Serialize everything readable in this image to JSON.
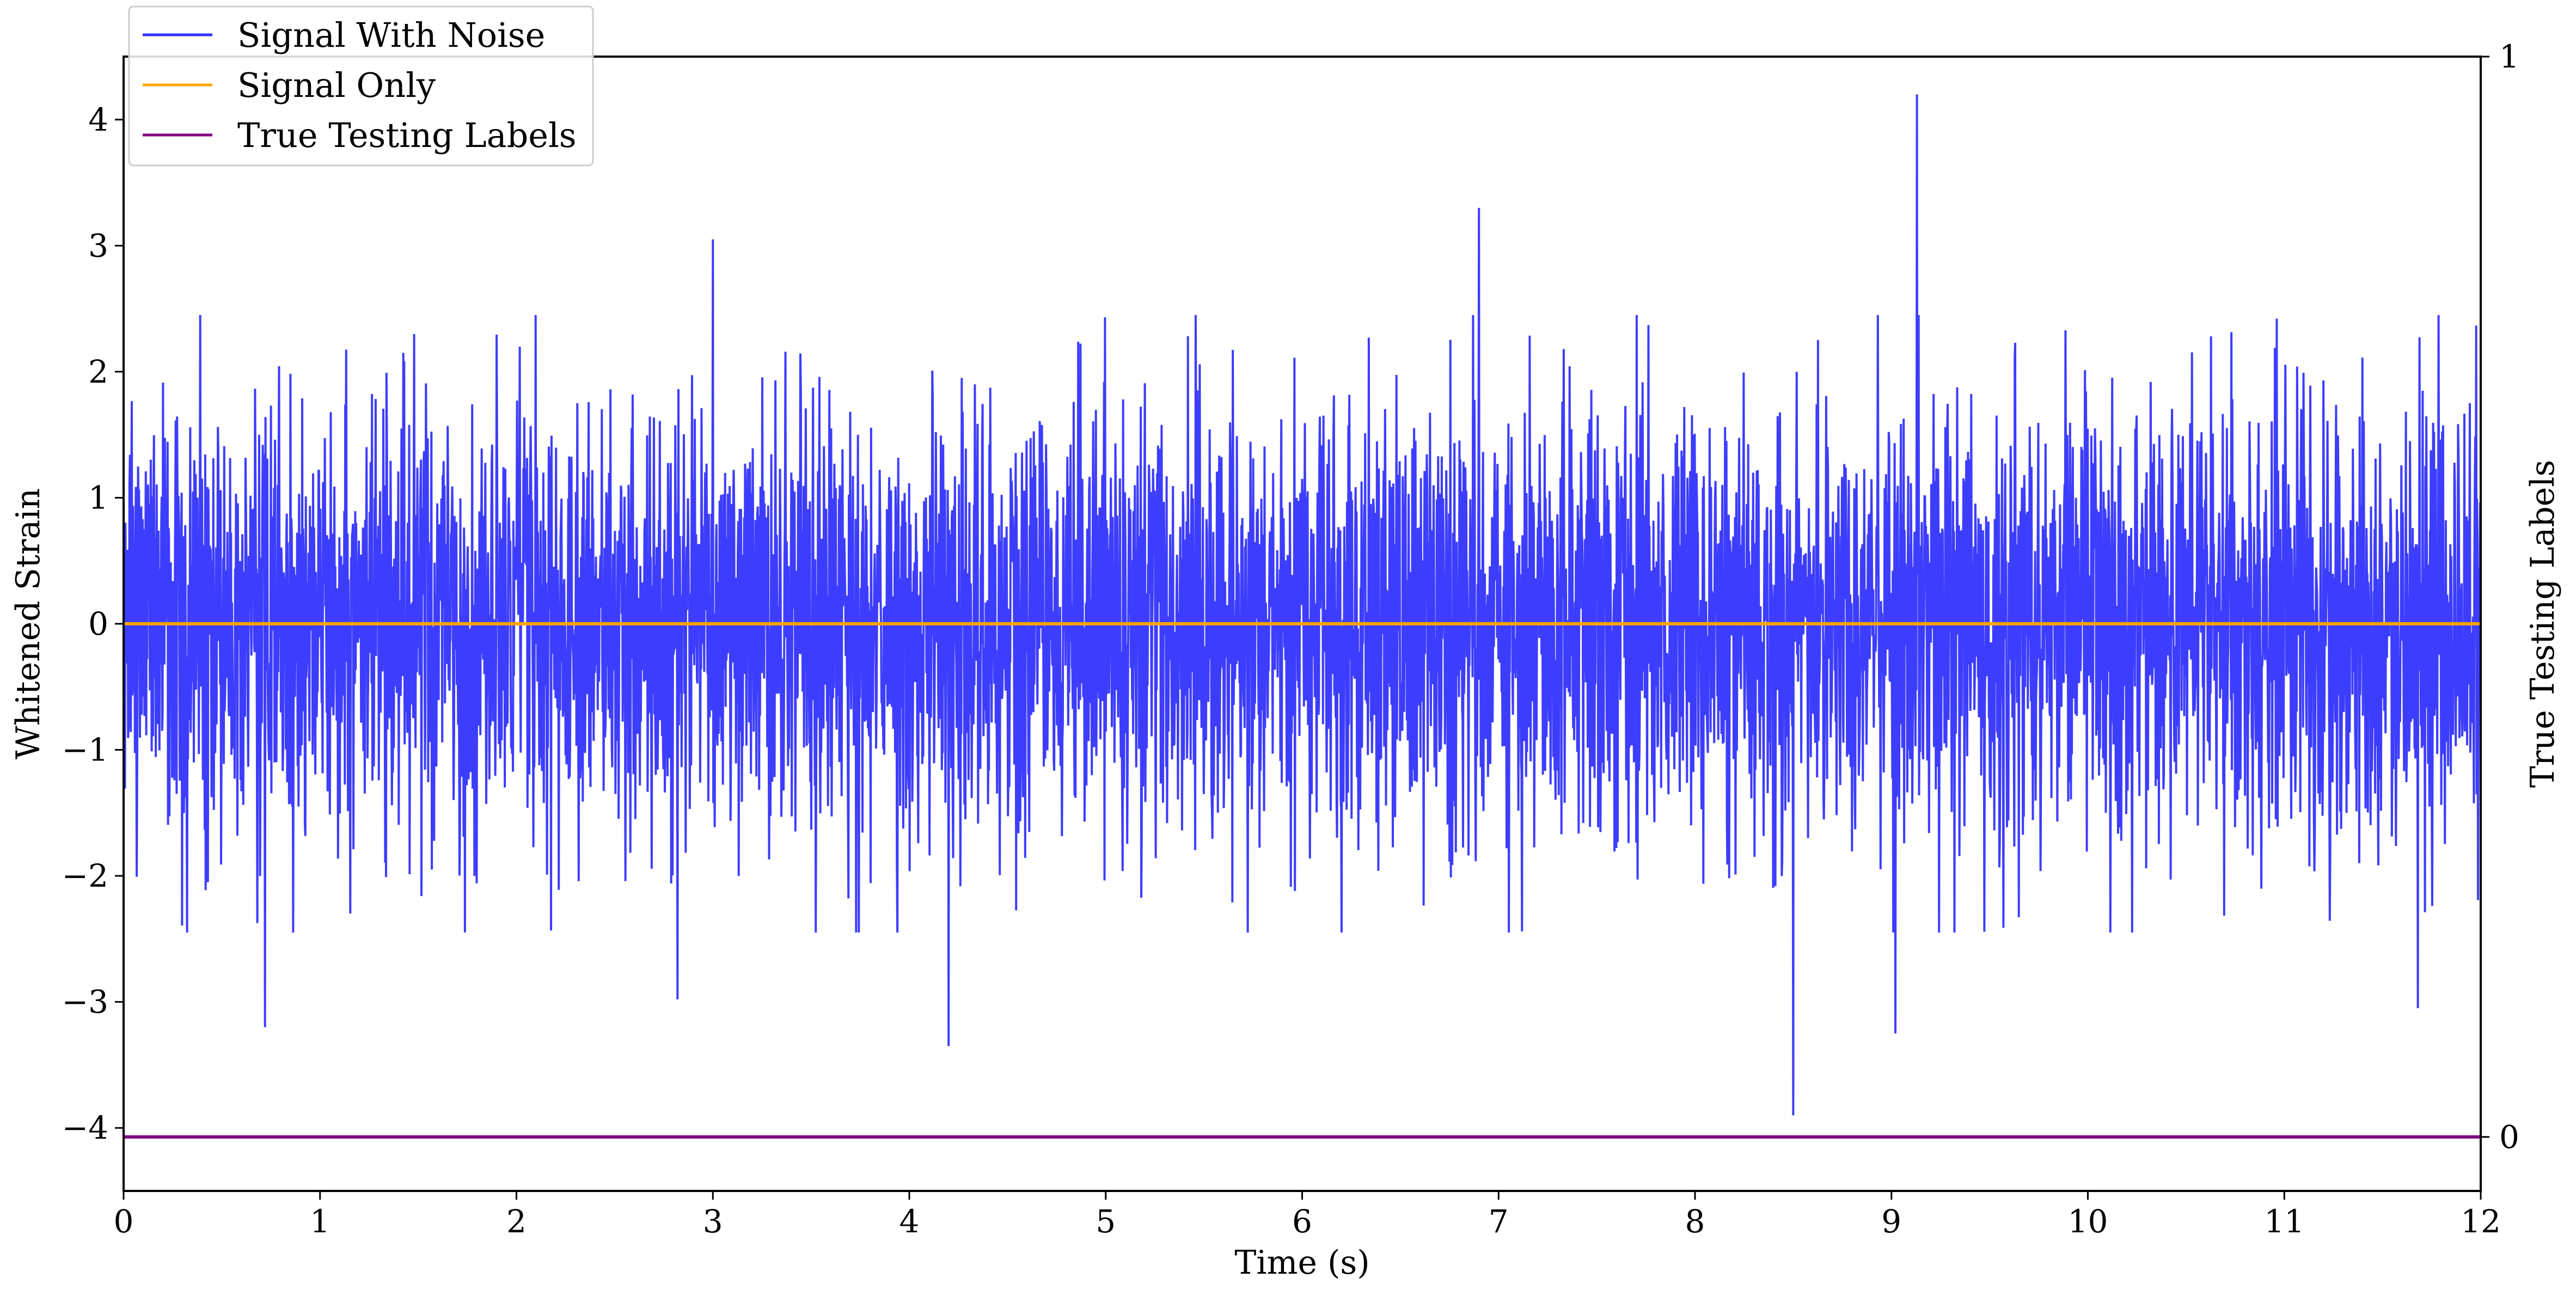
{
  "chart_data": {
    "type": "line",
    "xlabel": "Time (s)",
    "ylabel": "Whitened Strain",
    "y2label": "True Testing Labels",
    "xlim": [
      0,
      12
    ],
    "ylim": [
      -4.5,
      4.5
    ],
    "y2lim": [
      -0.05,
      1
    ],
    "xticks": [
      "0",
      "1",
      "2",
      "3",
      "4",
      "5",
      "6",
      "7",
      "8",
      "9",
      "10",
      "11",
      "12"
    ],
    "yticks": [
      "−4",
      "−3",
      "−2",
      "−1",
      "0",
      "1",
      "2",
      "3",
      "4"
    ],
    "y2ticks": [
      "0",
      "1"
    ],
    "legend_position": "upper-left",
    "series": [
      {
        "name": "Signal With Noise",
        "color": "#3333ff",
        "axis": "left",
        "description": "dense noise around 0, roughly within ±2.5",
        "peaks": [
          {
            "x": 9.13,
            "y": 4.2
          },
          {
            "x": 6.9,
            "y": 3.3
          },
          {
            "x": 3.0,
            "y": 3.05
          },
          {
            "x": 0.72,
            "y": -3.2
          },
          {
            "x": 2.82,
            "y": -2.98
          },
          {
            "x": 4.2,
            "y": -3.35
          },
          {
            "x": 8.5,
            "y": -3.9
          },
          {
            "x": 9.02,
            "y": -3.25
          },
          {
            "x": 11.68,
            "y": -3.05
          }
        ]
      },
      {
        "name": "Signal Only",
        "color": "#ffa500",
        "axis": "left",
        "x": [
          0,
          12
        ],
        "y": [
          0,
          0
        ]
      },
      {
        "name": "True Testing Labels",
        "color": "#800080",
        "axis": "right",
        "x": [
          0,
          12
        ],
        "y": [
          0,
          0
        ]
      }
    ]
  }
}
